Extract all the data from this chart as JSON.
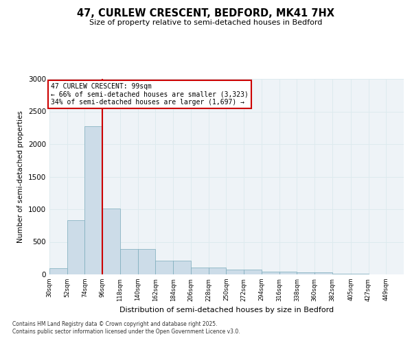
{
  "title_line1": "47, CURLEW CRESCENT, BEDFORD, MK41 7HX",
  "title_line2": "Size of property relative to semi-detached houses in Bedford",
  "xlabel": "Distribution of semi-detached houses by size in Bedford",
  "ylabel": "Number of semi-detached properties",
  "footer_line1": "Contains HM Land Registry data © Crown copyright and database right 2025.",
  "footer_line2": "Contains public sector information licensed under the Open Government Licence v3.0.",
  "property_label": "47 CURLEW CRESCENT: 99sqm",
  "annotation_smaller": "← 66% of semi-detached houses are smaller (3,323)",
  "annotation_larger": "34% of semi-detached houses are larger (1,697) →",
  "bar_color": "#ccdce8",
  "bar_edge_color": "#7aaabb",
  "red_line_color": "#cc0000",
  "annotation_box_color": "#cc0000",
  "grid_color": "#ddeaee",
  "background_color": "#eef3f7",
  "bins": [
    30,
    52,
    74,
    96,
    118,
    140,
    162,
    184,
    206,
    228,
    250,
    272,
    294,
    316,
    338,
    360,
    382,
    405,
    427,
    449,
    471
  ],
  "counts": [
    100,
    830,
    2270,
    1010,
    390,
    390,
    210,
    210,
    110,
    110,
    70,
    70,
    45,
    45,
    30,
    30,
    10,
    10,
    5,
    3
  ],
  "red_line_x": 96,
  "ylim": [
    0,
    3000
  ],
  "yticks": [
    0,
    500,
    1000,
    1500,
    2000,
    2500,
    3000
  ]
}
